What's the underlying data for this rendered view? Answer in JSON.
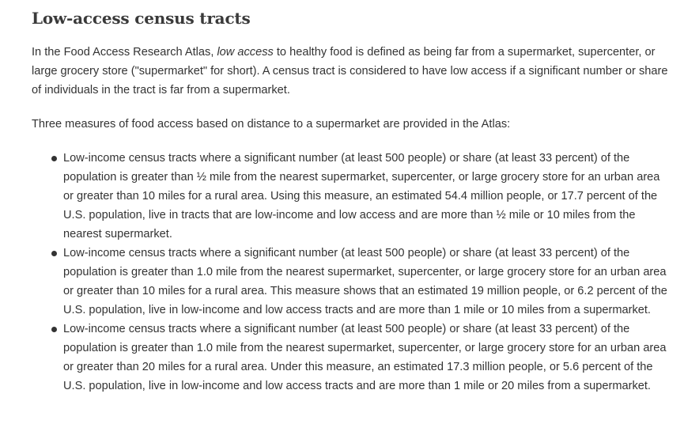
{
  "heading": "Low-access census tracts",
  "intro": {
    "before": "In the Food Access Research Atlas, ",
    "emphasis": "low access",
    "after": " to healthy food is defined as being far from a supermarket, supercenter, or large grocery store (\"supermarket\" for short). A census tract is considered to have low access if a significant number or share of individuals in the tract is far from a supermarket."
  },
  "measures_intro": "Three measures of food access based on distance to a supermarket are provided in the Atlas:",
  "measures": [
    {
      "text": "Low-income census tracts where a significant number (at least 500 people) or share (at least 33 percent) of the population is greater than ½ mile from the nearest supermarket, supercenter, or large grocery store for an urban area or greater than 10 miles for a rural area. Using this measure, an estimated 54.4 million people, or 17.7 percent of the U.S. population, live in tracts that are low-income and low access and are more than ½ mile or 10 miles from the nearest supermarket."
    },
    {
      "text": "Low-income census tracts where a significant number (at least 500 people) or share (at least 33 percent) of the population is greater than 1.0 mile from the nearest supermarket, supercenter, or large grocery store for an urban area or greater than 10 miles for a rural area. This measure shows that an estimated 19 million people, or 6.2 percent of the U.S. population, live in low-income and low access tracts and are more than 1 mile or 10 miles from a supermarket."
    },
    {
      "text": "Low-income census tracts where a significant number (at least 500 people) or share (at least 33 percent) of the population is greater than 1.0 mile from the nearest supermarket, supercenter, or large grocery store for an urban area or greater than 20 miles for a rural area. Under this measure, an estimated 17.3 million people, or 5.6 percent of the U.S. population, live in low-income and low access tracts and are more than 1 mile or 20 miles from a supermarket."
    }
  ]
}
